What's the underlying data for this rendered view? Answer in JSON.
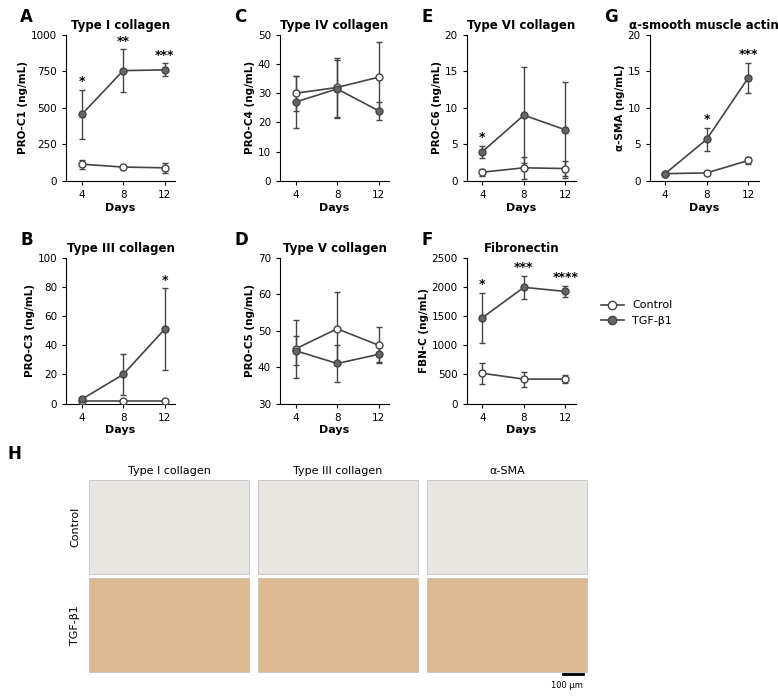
{
  "chart_data": [
    {
      "type": "line",
      "panel": "A",
      "title": "Type I collagen",
      "x_label": "Days",
      "y_label": "PRO-C1 (ng/mL)",
      "x": [
        4,
        8,
        12
      ],
      "xlim": [
        2.5,
        13
      ],
      "xticks": [
        4,
        8,
        12
      ],
      "ylim": [
        0,
        1000
      ],
      "yticks": [
        0,
        250,
        500,
        750,
        1000
      ],
      "series": [
        {
          "name": "Control",
          "color": "#ffffff",
          "marker": "o",
          "values": [
            115,
            95,
            90
          ],
          "errors": [
            30,
            10,
            35
          ]
        },
        {
          "name": "TGF-β1",
          "color": "#666666",
          "marker": "o",
          "values": [
            455,
            755,
            760
          ],
          "errors": [
            170,
            145,
            45
          ]
        }
      ],
      "annotations": [
        {
          "x": 4,
          "text": "*"
        },
        {
          "x": 8,
          "text": "**"
        },
        {
          "x": 12,
          "text": "***"
        }
      ]
    },
    {
      "type": "line",
      "panel": "B",
      "title": "Type III collagen",
      "x_label": "Days",
      "y_label": "PRO-C3 (ng/mL)",
      "x": [
        4,
        8,
        12
      ],
      "xlim": [
        2.5,
        13
      ],
      "xticks": [
        4,
        8,
        12
      ],
      "ylim": [
        0,
        100
      ],
      "yticks": [
        0,
        20,
        40,
        60,
        80,
        100
      ],
      "series": [
        {
          "name": "Control",
          "color": "#ffffff",
          "marker": "o",
          "values": [
            2,
            2,
            2
          ],
          "errors": [
            1,
            1,
            1
          ]
        },
        {
          "name": "TGF-β1",
          "color": "#666666",
          "marker": "o",
          "values": [
            3,
            20,
            51
          ],
          "errors": [
            1,
            14,
            28
          ]
        }
      ],
      "annotations": [
        {
          "x": 12,
          "text": "*"
        }
      ]
    },
    {
      "type": "line",
      "panel": "C",
      "title": "Type IV collagen",
      "x_label": "Days",
      "y_label": "PRO-C4 (ng/mL)",
      "x": [
        4,
        8,
        12
      ],
      "xlim": [
        2.5,
        13
      ],
      "xticks": [
        4,
        8,
        12
      ],
      "ylim": [
        0,
        50
      ],
      "yticks": [
        0,
        10,
        20,
        30,
        40,
        50
      ],
      "series": [
        {
          "name": "Control",
          "color": "#ffffff",
          "marker": "o",
          "values": [
            30,
            32,
            35.5
          ],
          "errors": [
            6,
            10,
            12
          ]
        },
        {
          "name": "TGF-β1",
          "color": "#666666",
          "marker": "o",
          "values": [
            27,
            31.5,
            24
          ],
          "errors": [
            9,
            10,
            3
          ]
        }
      ],
      "annotations": []
    },
    {
      "type": "line",
      "panel": "D",
      "title": "Type V collagen",
      "x_label": "Days",
      "y_label": "PRO-C5 (ng/mL)",
      "x": [
        4,
        8,
        12
      ],
      "xlim": [
        2.5,
        13
      ],
      "xticks": [
        4,
        8,
        12
      ],
      "ylim": [
        30,
        70
      ],
      "yticks": [
        30,
        40,
        50,
        60,
        70
      ],
      "series": [
        {
          "name": "Control",
          "color": "#ffffff",
          "marker": "o",
          "values": [
            45,
            50.5,
            46
          ],
          "errors": [
            8,
            10,
            5
          ]
        },
        {
          "name": "TGF-β1",
          "color": "#666666",
          "marker": "o",
          "values": [
            44.5,
            41,
            43.5
          ],
          "errors": [
            4,
            5,
            2
          ]
        }
      ],
      "annotations": []
    },
    {
      "type": "line",
      "panel": "E",
      "title": "Type VI collagen",
      "x_label": "Days",
      "y_label": "PRO-C6 (ng/mL)",
      "x": [
        4,
        8,
        12
      ],
      "xlim": [
        2.5,
        13
      ],
      "xticks": [
        4,
        8,
        12
      ],
      "ylim": [
        0,
        20
      ],
      "yticks": [
        0,
        5,
        10,
        15,
        20
      ],
      "series": [
        {
          "name": "Control",
          "color": "#ffffff",
          "marker": "o",
          "values": [
            1.2,
            1.8,
            1.7
          ],
          "errors": [
            0.5,
            1.5,
            1
          ]
        },
        {
          "name": "TGF-β1",
          "color": "#666666",
          "marker": "o",
          "values": [
            4,
            9,
            7
          ],
          "errors": [
            0.8,
            6.6,
            6.6
          ]
        }
      ],
      "annotations": [
        {
          "x": 4,
          "text": "*"
        }
      ]
    },
    {
      "type": "line",
      "panel": "F",
      "title": "Fibronectin",
      "x_label": "Days",
      "y_label": "FBN-C (ng/mL)",
      "x": [
        4,
        8,
        12
      ],
      "xlim": [
        2.5,
        13
      ],
      "xticks": [
        4,
        8,
        12
      ],
      "ylim": [
        0,
        2500
      ],
      "yticks": [
        0,
        500,
        1000,
        1500,
        2000,
        2500
      ],
      "legend": "center left",
      "series": [
        {
          "name": "Control",
          "color": "#ffffff",
          "marker": "o",
          "values": [
            520,
            420,
            420
          ],
          "errors": [
            180,
            130,
            70
          ]
        },
        {
          "name": "TGF-β1",
          "color": "#666666",
          "marker": "o",
          "values": [
            1470,
            1990,
            1920
          ],
          "errors": [
            430,
            200,
            100
          ]
        }
      ],
      "annotations": [
        {
          "x": 4,
          "text": "*"
        },
        {
          "x": 8,
          "text": "***"
        },
        {
          "x": 12,
          "text": "****"
        }
      ]
    },
    {
      "type": "line",
      "panel": "G",
      "title": "α-smooth muscle actin",
      "x_label": "Days",
      "y_label": "α-SMA (ng/mL)",
      "x": [
        4,
        8,
        12
      ],
      "xlim": [
        2.5,
        13
      ],
      "xticks": [
        4,
        8,
        12
      ],
      "ylim": [
        0,
        20
      ],
      "yticks": [
        0,
        5,
        10,
        15,
        20
      ],
      "series": [
        {
          "name": "Control",
          "color": "#ffffff",
          "marker": "o",
          "values": [
            1.0,
            1.1,
            2.8
          ],
          "errors": [
            0.2,
            0.2,
            0.5
          ]
        },
        {
          "name": "TGF-β1",
          "color": "#666666",
          "marker": "o",
          "values": [
            1.0,
            5.7,
            14.1
          ],
          "errors": [
            0.2,
            1.6,
            2.1
          ]
        }
      ],
      "annotations": [
        {
          "x": 8,
          "text": "*"
        },
        {
          "x": 12,
          "text": "***"
        }
      ]
    }
  ],
  "image_panel": {
    "panel": "H",
    "columns": [
      "Type I collagen",
      "Type III collagen",
      "α-SMA"
    ],
    "rows": [
      "Control",
      "TGF-β1"
    ],
    "scale_bar": "100 µm"
  }
}
